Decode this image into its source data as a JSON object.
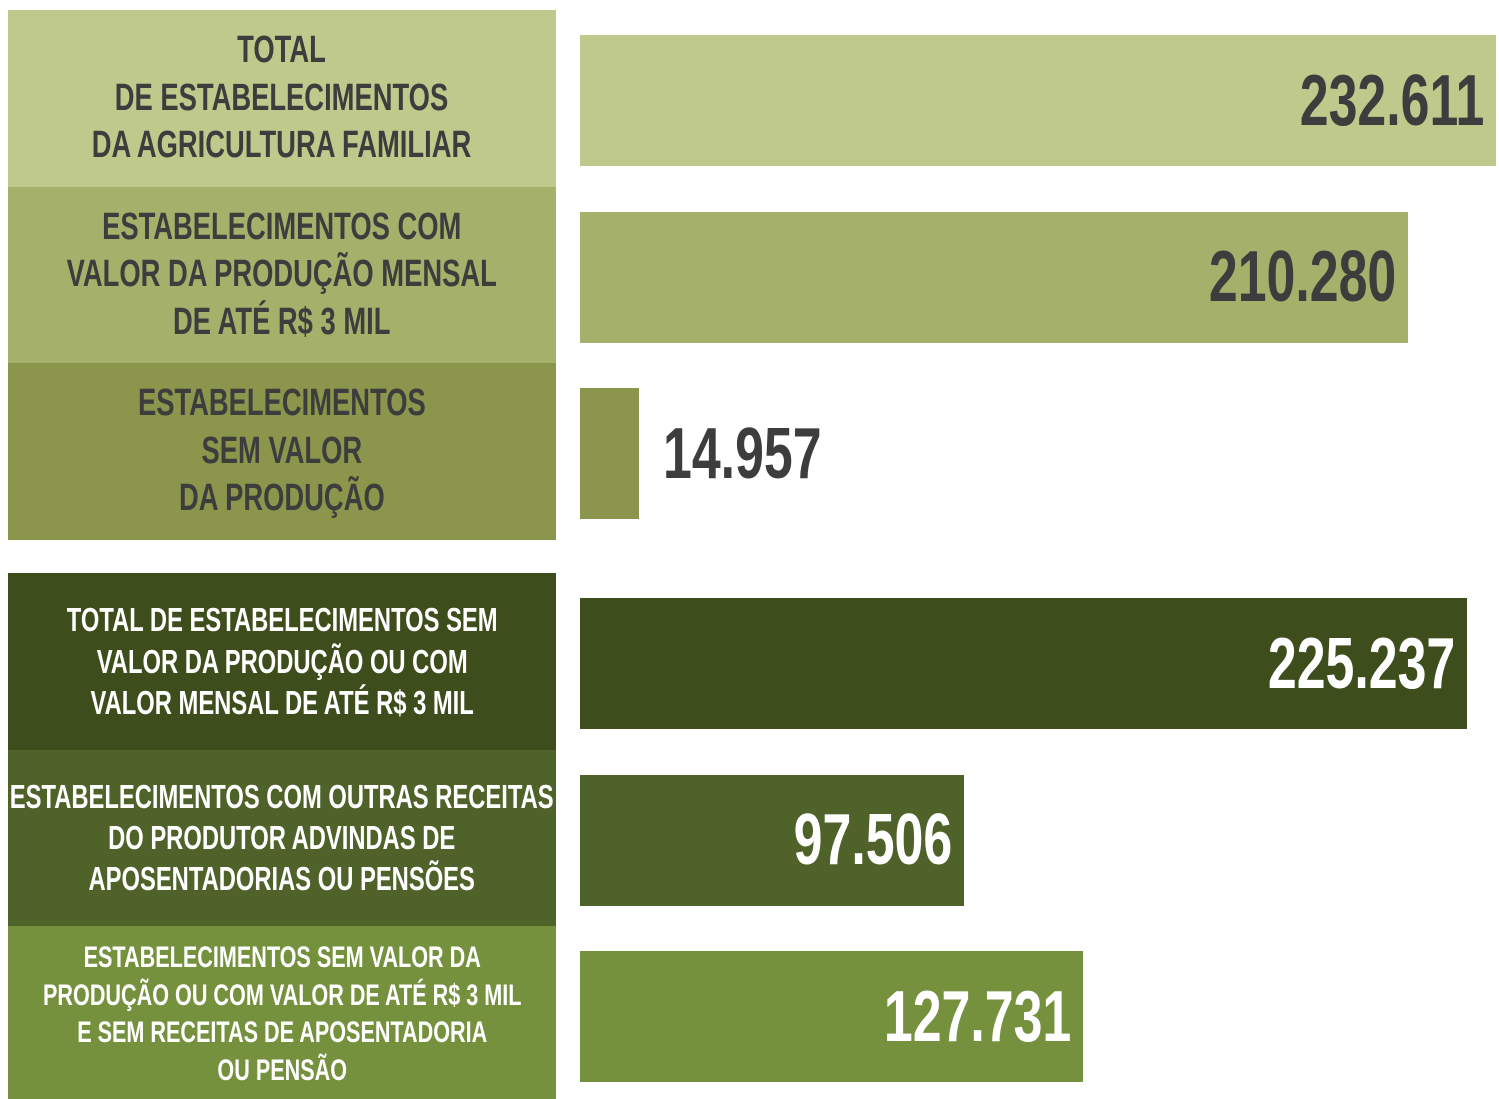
{
  "chart_data": [
    {
      "type": "bar",
      "orientation": "horizontal",
      "xlim": [
        0,
        233000
      ],
      "categories": [
        "TOTAL\nDE ESTABELECIMENTOS\nDA AGRICULTURA FAMILIAR",
        "ESTABELECIMENTOS COM\nVALOR DA PRODUÇÃO MENSAL\nDE ATÉ R$ 3 MIL",
        "ESTABELECIMENTOS\nSEM VALOR\nDA PRODUÇÃO"
      ],
      "values": [
        232611,
        210280,
        14957
      ],
      "value_labels": [
        "232.611",
        "210.280",
        "14.957"
      ],
      "colors": [
        "#bfc98c",
        "#a5b06a",
        "#8c954c"
      ],
      "text_color": "#3d3d3d"
    },
    {
      "type": "bar",
      "orientation": "horizontal",
      "xlim": [
        0,
        233000
      ],
      "categories": [
        "TOTAL DE ESTABELECIMENTOS SEM\nVALOR DA PRODUÇÃO OU COM\nVALOR MENSAL DE ATÉ R$ 3 MIL",
        "ESTABELECIMENTOS COM OUTRAS RECEITAS\nDO PRODUTOR ADVINDAS DE\nAPOSENTADORIAS OU PENSÕES",
        "ESTABELECIMENTOS SEM VALOR DA\nPRODUÇÃO OU COM VALOR DE ATÉ R$ 3 MIL\nE SEM RECEITAS DE APOSENTADORIA\nOU PENSÃO"
      ],
      "values": [
        225237,
        97506,
        127731
      ],
      "value_labels": [
        "225.237",
        "97.506",
        "127.731"
      ],
      "colors": [
        "#3e4d1c",
        "#4f6229",
        "#76913e"
      ],
      "text_color": "#ffffff"
    }
  ]
}
